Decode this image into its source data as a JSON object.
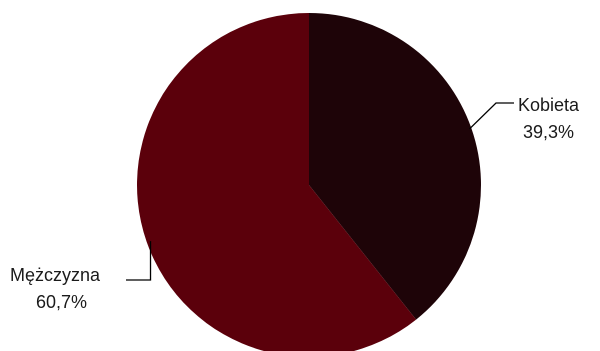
{
  "chart_data": {
    "type": "pie",
    "start_angle_deg": 0,
    "direction": "clockwise",
    "slices": [
      {
        "label": "Kobieta",
        "value": 39.3,
        "display": "39,3%",
        "color": "#1e0408"
      },
      {
        "label": "Mężczyzna",
        "value": 60.7,
        "display": "60,7%",
        "color": "#5b000b"
      }
    ]
  }
}
